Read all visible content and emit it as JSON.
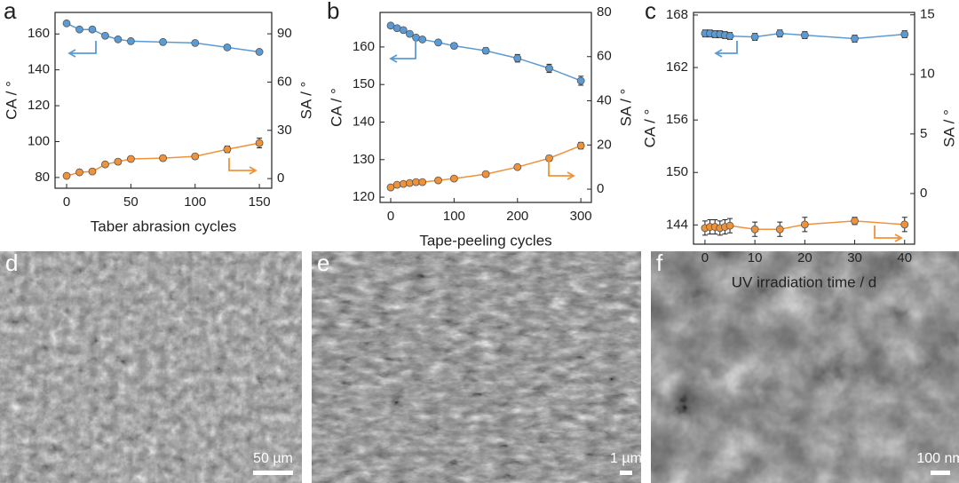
{
  "chart_data": [
    {
      "type": "line",
      "label": "a",
      "x_label": "Taber abrasion cycles",
      "y_label": "CA / °",
      "y2_label": "SA / °",
      "x": [
        0,
        10,
        20,
        30,
        40,
        50,
        75,
        100,
        125,
        150
      ],
      "xlim": [
        -9,
        159.6
      ],
      "xticks": [
        0,
        50,
        100,
        150
      ],
      "ylim": [
        74,
        172
      ],
      "yticks": [
        80,
        100,
        120,
        140,
        160
      ],
      "y2lim": [
        -6,
        103.3
      ],
      "y2ticks": [
        0,
        30,
        60,
        90
      ],
      "series": [
        {
          "color": "#5b9bd5",
          "values": [
            165.9,
            162.5,
            162.5,
            159,
            157,
            156,
            155.5,
            155,
            152.5,
            150
          ],
          "errors": [
            1,
            1,
            1,
            1,
            1,
            1,
            1,
            1,
            1,
            1
          ]
        },
        {
          "color": "#f0923a",
          "axis": "y2",
          "values": [
            1.7,
            3.9,
            4.4,
            8.8,
            10.5,
            12.2,
            12.7,
            13.8,
            18.2,
            22.1
          ],
          "errors": [
            1.5,
            1.5,
            1.5,
            1.5,
            1.5,
            1.5,
            1.5,
            1.5,
            2,
            3
          ]
        }
      ]
    },
    {
      "type": "line",
      "label": "b",
      "x_label": "Tape-peeling cycles",
      "y_label": "CA / °",
      "y2_label": "SA / °",
      "x": [
        0,
        10,
        20,
        30,
        40,
        50,
        75,
        100,
        150,
        200,
        250,
        300
      ],
      "xlim": [
        -16.8,
        316.6
      ],
      "xticks": [
        0,
        100,
        200,
        300
      ],
      "ylim": [
        118.6,
        169.2
      ],
      "yticks": [
        120,
        130,
        140,
        150,
        160
      ],
      "y2lim": [
        -6,
        80
      ],
      "y2ticks": [
        0,
        20,
        40,
        60,
        80
      ],
      "series": [
        {
          "color": "#5b9bd5",
          "values": [
            165.7,
            165,
            164.5,
            163.5,
            162.5,
            162,
            161.2,
            160.3,
            159,
            157,
            154.3,
            151
          ],
          "errors": [
            0.6,
            0.6,
            0.6,
            0.6,
            0.6,
            0.6,
            0.6,
            0.7,
            0.8,
            1,
            1.1,
            1.2
          ]
        },
        {
          "color": "#f0923a",
          "axis": "y2",
          "values": [
            0.8,
            2,
            2.4,
            2.8,
            3.2,
            3.2,
            4,
            4.8,
            6.8,
            10,
            14,
            19.7
          ],
          "errors": [
            1,
            1,
            1,
            1,
            1,
            1,
            1,
            1,
            1,
            1,
            1.2,
            1.5
          ]
        }
      ]
    },
    {
      "type": "line",
      "label": "c",
      "x_label": "UV irradiation time / d",
      "y_label": "CA / °",
      "y2_label": "SA / °",
      "x": [
        0,
        1,
        2,
        3,
        4,
        5,
        10,
        15,
        20,
        30,
        40
      ],
      "xlim": [
        -2.3,
        42
      ],
      "xticks": [
        0,
        10,
        20,
        30,
        40
      ],
      "ylim": [
        141.8,
        168.3
      ],
      "yticks": [
        144,
        150,
        156,
        162,
        168
      ],
      "y2lim": [
        -4.25,
        15.2
      ],
      "y2ticks": [
        0,
        5,
        10,
        15
      ],
      "series": [
        {
          "color": "#5b9bd5",
          "values": [
            165.9,
            165.9,
            165.8,
            165.8,
            165.7,
            165.6,
            165.5,
            165.9,
            165.7,
            165.3,
            165.8
          ],
          "errors": [
            0.4,
            0.4,
            0.4,
            0.4,
            0.4,
            0.4,
            0.4,
            0.4,
            0.4,
            0.4,
            0.4
          ]
        },
        {
          "color": "#f0923a",
          "axis": "y2",
          "values": [
            -2.9,
            -2.8,
            -2.8,
            -2.9,
            -2.8,
            -2.7,
            -3,
            -3,
            -2.6,
            -2.3,
            -2.6
          ],
          "errors": [
            0.6,
            0.6,
            0.6,
            0.6,
            0.6,
            0.6,
            0.6,
            0.6,
            0.6,
            0.3,
            0.6
          ]
        }
      ]
    }
  ],
  "images": [
    {
      "label": "d",
      "scale_bar": "50 µm"
    },
    {
      "label": "e",
      "scale_bar": "1 µm"
    },
    {
      "label": "f",
      "scale_bar": "100 nm"
    }
  ]
}
